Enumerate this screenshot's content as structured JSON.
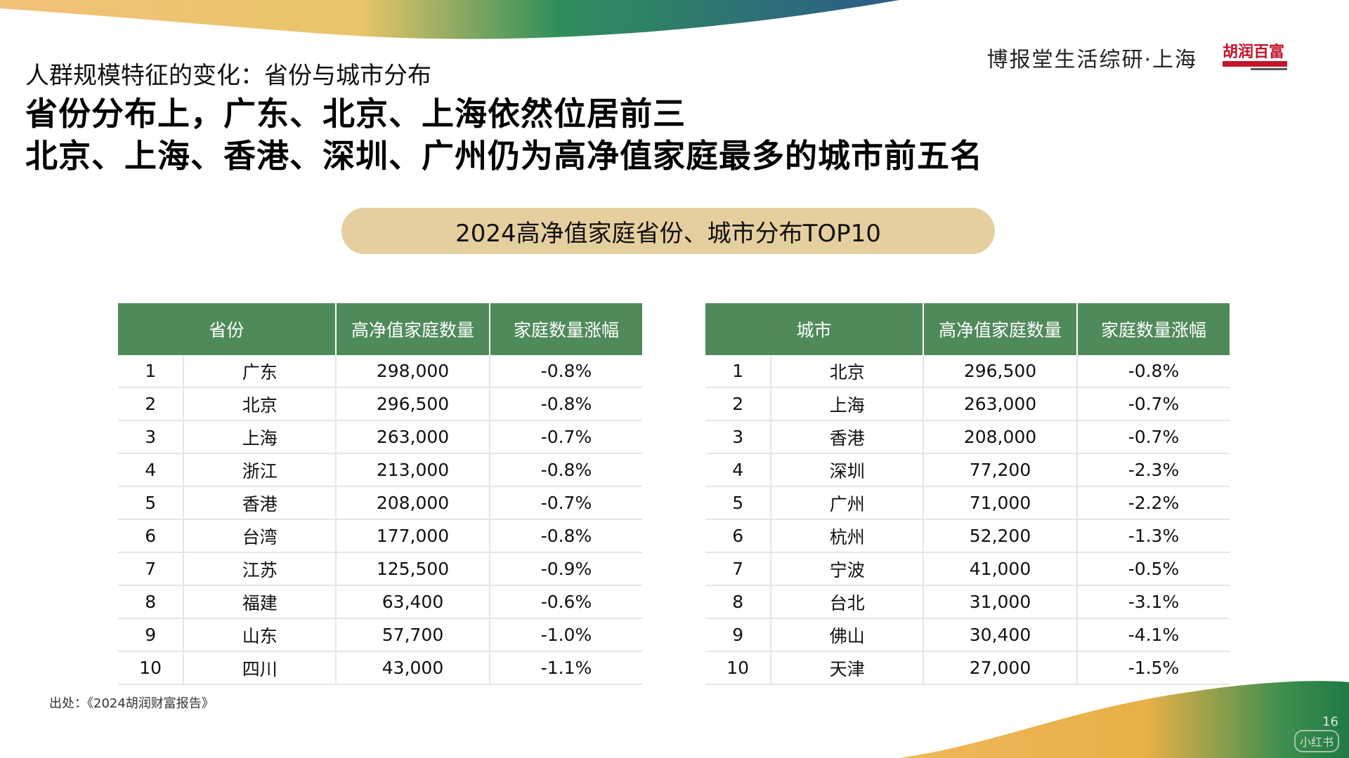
{
  "header": {
    "brand": "博报堂生活综研·上海",
    "logo_text": "胡润百富",
    "subtitle": "人群规模特征的变化：省份与城市分布",
    "headline_1": "省份分布上，广东、北京、上海依然位居前三",
    "headline_2": "北京、上海、香港、深圳、广州仍为高净值家庭最多的城市前五名"
  },
  "banner": {
    "title": "2024高净值家庭省份、城市分布TOP10"
  },
  "province_table": {
    "headers": [
      "省份",
      "高净值家庭数量",
      "家庭数量涨幅"
    ],
    "rows": [
      {
        "rank": "1",
        "name": "广东",
        "count": "298,000",
        "change": "-0.8%"
      },
      {
        "rank": "2",
        "name": "北京",
        "count": "296,500",
        "change": "-0.8%"
      },
      {
        "rank": "3",
        "name": "上海",
        "count": "263,000",
        "change": "-0.7%"
      },
      {
        "rank": "4",
        "name": "浙江",
        "count": "213,000",
        "change": "-0.8%"
      },
      {
        "rank": "5",
        "name": "香港",
        "count": "208,000",
        "change": "-0.7%"
      },
      {
        "rank": "6",
        "name": "台湾",
        "count": "177,000",
        "change": "-0.8%"
      },
      {
        "rank": "7",
        "name": "江苏",
        "count": "125,500",
        "change": "-0.9%"
      },
      {
        "rank": "8",
        "name": "福建",
        "count": "63,400",
        "change": "-0.6%"
      },
      {
        "rank": "9",
        "name": "山东",
        "count": "57,700",
        "change": "-1.0%"
      },
      {
        "rank": "10",
        "name": "四川",
        "count": "43,000",
        "change": "-1.1%"
      }
    ]
  },
  "city_table": {
    "headers": [
      "城市",
      "高净值家庭数量",
      "家庭数量涨幅"
    ],
    "rows": [
      {
        "rank": "1",
        "name": "北京",
        "count": "296,500",
        "change": "-0.8%"
      },
      {
        "rank": "2",
        "name": "上海",
        "count": "263,000",
        "change": "-0.7%"
      },
      {
        "rank": "3",
        "name": "香港",
        "count": "208,000",
        "change": "-0.7%"
      },
      {
        "rank": "4",
        "name": "深圳",
        "count": "77,200",
        "change": "-2.3%"
      },
      {
        "rank": "5",
        "name": "广州",
        "count": "71,000",
        "change": "-2.2%"
      },
      {
        "rank": "6",
        "name": "杭州",
        "count": "52,200",
        "change": "-1.3%"
      },
      {
        "rank": "7",
        "name": "宁波",
        "count": "41,000",
        "change": "-0.5%"
      },
      {
        "rank": "8",
        "name": "台北",
        "count": "31,000",
        "change": "-3.1%"
      },
      {
        "rank": "9",
        "name": "佛山",
        "count": "30,400",
        "change": "-4.1%"
      },
      {
        "rank": "10",
        "name": "天津",
        "count": "27,000",
        "change": "-1.5%"
      }
    ]
  },
  "footer": {
    "source": "出处：《2024胡润财富报告》",
    "page_number": "16",
    "watermark": "小红书"
  },
  "colors": {
    "table_header": "#4f8a5a",
    "banner": "#e6cf9e",
    "row_border": "#e6e6e6"
  }
}
